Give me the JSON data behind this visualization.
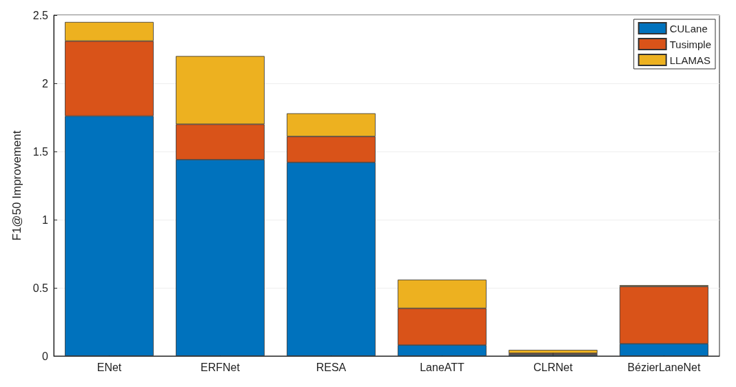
{
  "chart_data": {
    "type": "bar",
    "stacked": true,
    "ylabel": "F1@50 Improvement",
    "categories": [
      "ENet",
      "ERFNet",
      "RESA",
      "LaneATT",
      "CLRNet",
      "BézierLaneNet"
    ],
    "series": [
      {
        "name": "CULane",
        "color": "#0072bd",
        "values": [
          1.76,
          1.44,
          1.42,
          0.08,
          0.01,
          0.09
        ]
      },
      {
        "name": "Tusimple",
        "color": "#d95319",
        "values": [
          0.55,
          0.26,
          0.19,
          0.27,
          0.01,
          0.42
        ]
      },
      {
        "name": "LLAMAS",
        "color": "#edb120",
        "values": [
          0.14,
          0.5,
          0.17,
          0.21,
          0.025,
          0.01
        ]
      }
    ],
    "ylim": [
      0,
      2.5
    ],
    "yticks": [
      0,
      0.5,
      1,
      1.5,
      2,
      2.5
    ],
    "grid": "y",
    "legend": "top right"
  }
}
